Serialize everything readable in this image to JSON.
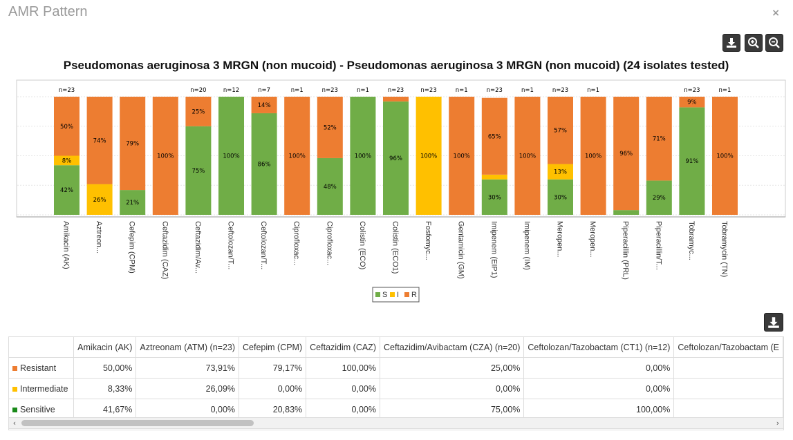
{
  "window": {
    "title": "AMR Pattern",
    "close_glyph": "×"
  },
  "toolbar": {
    "download_icon": "download-icon",
    "zoom_in_icon": "zoom-in-icon",
    "zoom_out_icon": "zoom-out-icon"
  },
  "colors": {
    "S": "#70ad47",
    "I": "#ffc000",
    "R": "#ed7d31"
  },
  "chart_data": {
    "type": "bar",
    "stacked": true,
    "percent": true,
    "title": "Pseudomonas aeruginosa 3 MRGN (non mucoid) - Pseudomonas aeruginosa 3 MRGN (non mucoid) (24 isolates tested)",
    "ylim": [
      0,
      100
    ],
    "categories": [
      "Amikacin (AK)",
      "Aztreon...",
      "Cefepim (CPM)",
      "Ceftazidim (CAZ)",
      "Ceftazidim/Av...",
      "Ceftolozan/T...",
      "Ceftolozan/T...",
      "Ciprofloxac...",
      "Ciprofloxac...",
      "Colistin (ECO)",
      "Colistin (ECO1)",
      "Fosfomyc...",
      "Gentamicin (GM)",
      "Imipenem (EIP1)",
      "Imipenem (IM)",
      "Meropen...",
      "Meropen...",
      "Piperacillin (PRL)",
      "Piperacillin/T...",
      "Tobramyc...",
      "Tobramycin (TN)"
    ],
    "n_labels": [
      "n=23",
      "",
      "",
      "",
      "n=20",
      "n=12",
      "n=7",
      "n=1",
      "n=23",
      "n=1",
      "n=23",
      "n=23",
      "n=1",
      "n=23",
      "n=1",
      "n=23",
      "n=1",
      "",
      "",
      "n=23",
      "n=1"
    ],
    "series": [
      {
        "name": "S",
        "values": [
          42,
          0,
          21,
          0,
          75,
          100,
          86,
          0,
          48,
          100,
          96,
          0,
          0,
          30,
          0,
          30,
          0,
          4,
          29,
          91,
          0
        ],
        "labels": [
          "42%",
          "",
          "21%",
          "",
          "75%",
          "100%",
          "86%",
          "",
          "48%",
          "100%",
          "96%",
          "",
          "",
          "30%",
          "",
          "30%",
          "",
          "",
          "29%",
          "91%",
          ""
        ]
      },
      {
        "name": "I",
        "values": [
          8,
          26,
          0,
          0,
          0,
          0,
          0,
          0,
          0,
          0,
          0,
          100,
          0,
          4,
          0,
          13,
          0,
          0,
          0,
          0,
          0
        ],
        "labels": [
          "8%",
          "26%",
          "",
          "",
          "",
          "",
          "",
          "",
          "",
          "",
          "",
          "100%",
          "",
          "",
          "",
          "13%",
          "",
          "",
          "",
          "",
          ""
        ]
      },
      {
        "name": "R",
        "values": [
          50,
          74,
          79,
          100,
          25,
          0,
          14,
          100,
          52,
          0,
          4,
          0,
          100,
          65,
          100,
          57,
          100,
          96,
          71,
          9,
          100
        ],
        "labels": [
          "50%",
          "74%",
          "79%",
          "100%",
          "25%",
          "",
          "14%",
          "100%",
          "52%",
          "",
          "",
          "",
          "100%",
          "65%",
          "100%",
          "57%",
          "100%",
          "96%",
          "71%",
          "9%",
          "100%"
        ]
      }
    ],
    "legend": {
      "placement": "bottom",
      "entries": [
        "S",
        "I",
        "R"
      ]
    }
  },
  "table": {
    "columns": [
      "Amikacin (AK)",
      "Aztreonam (ATM) (n=23)",
      "Cefepim (CPM)",
      "Ceftazidim (CAZ)",
      "Ceftazidim/Avibactam (CZA) (n=20)",
      "Ceftolozan/Tazobactam (CT1) (n=12)",
      "Ceftolozan/Tazobactam (E"
    ],
    "rows": [
      {
        "label": "Resistant",
        "color": "#ed7d31",
        "values": [
          "50,00%",
          "73,91%",
          "79,17%",
          "100,00%",
          "25,00%",
          "0,00%",
          ""
        ]
      },
      {
        "label": "Intermediate",
        "color": "#ffc000",
        "values": [
          "8,33%",
          "26,09%",
          "0,00%",
          "0,00%",
          "0,00%",
          "0,00%",
          ""
        ]
      },
      {
        "label": "Sensitive",
        "color": "#1a8a1a",
        "values": [
          "41,67%",
          "0,00%",
          "20,83%",
          "0,00%",
          "75,00%",
          "100,00%",
          ""
        ]
      }
    ],
    "scroll_left": "‹",
    "scroll_right": "›"
  }
}
